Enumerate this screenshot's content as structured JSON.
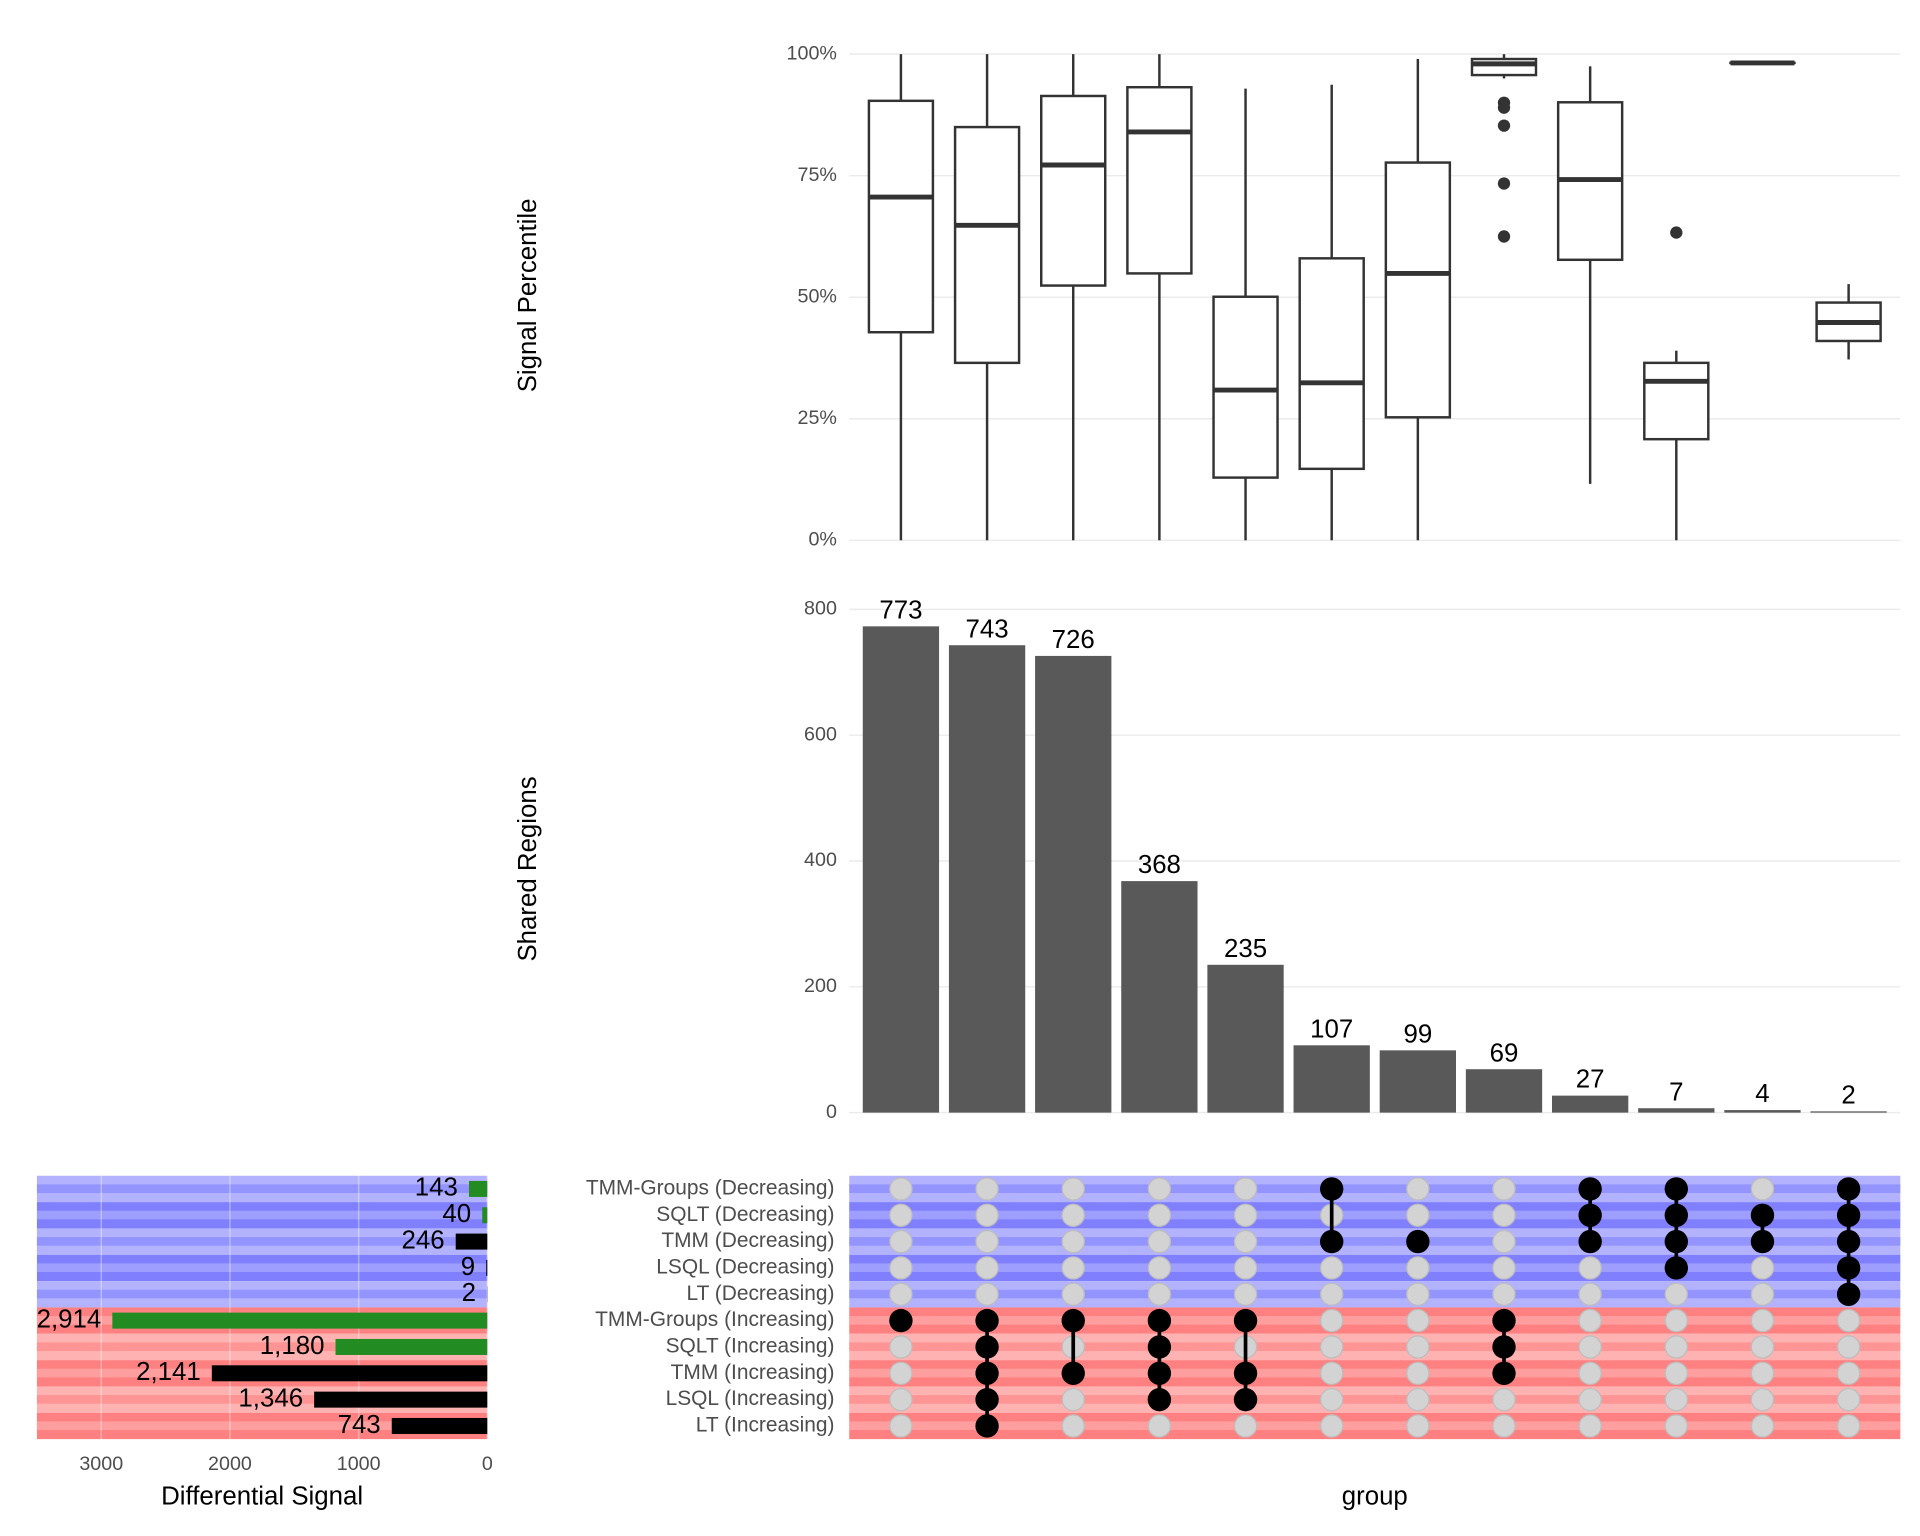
{
  "chart_data": [
    {
      "type": "box",
      "ylabel": "Signal Percentile",
      "categories": [
        null,
        null,
        null,
        null,
        null,
        null,
        null,
        null,
        null,
        null,
        null,
        null
      ],
      "whisker_low": [
        0,
        0,
        0,
        0,
        0,
        0,
        0,
        95,
        11.6,
        0,
        98.2,
        37.2
      ],
      "q1": [
        42.8,
        36.5,
        52.4,
        54.9,
        12.9,
        14.7,
        25.3,
        95.7,
        57.7,
        20.8,
        98.2,
        41
      ],
      "median": [
        70.6,
        64.8,
        77.2,
        84,
        30.9,
        32.4,
        54.9,
        98,
        74.2,
        32.7,
        98.2,
        44.8
      ],
      "q3": [
        90.4,
        85,
        91.4,
        93.2,
        50.1,
        58,
        77.7,
        99,
        90.1,
        36.5,
        98.2,
        48.9
      ],
      "whisker_high": [
        100,
        100,
        100,
        100,
        92.9,
        93.7,
        99,
        100,
        97.5,
        39,
        98.2,
        52.7
      ],
      "outliers": [
        [],
        [],
        [],
        [],
        [],
        [],
        [],
        [
          90,
          89,
          85.3,
          73.4,
          62.5
        ],
        [],
        [
          63.3
        ],
        [],
        []
      ],
      "color": "#333333",
      "ylim": [
        -5,
        100
      ],
      "yticks": [
        {
          "value": 0,
          "label": "0%"
        },
        {
          "value": 25,
          "label": "25%"
        },
        {
          "value": 50,
          "label": "50%"
        },
        {
          "value": 75,
          "label": "75%"
        },
        {
          "value": 100,
          "label": "100%"
        }
      ],
      "grid": true
    },
    {
      "type": "bar",
      "ylabel": "Shared Regions",
      "categories": [
        null,
        null,
        null,
        null,
        null,
        null,
        null,
        null,
        null,
        null,
        null,
        null
      ],
      "values": [
        773,
        743,
        726,
        368,
        235,
        107,
        99,
        69,
        27,
        7,
        4,
        2
      ],
      "color": "#595959",
      "ylim": [
        0,
        810
      ],
      "yticks": [
        0,
        200,
        400,
        600,
        800
      ],
      "grid": true
    },
    {
      "type": "matrix",
      "xlabel": "group",
      "sets": [
        "TMM-Groups (Decreasing)",
        "SQLT (Decreasing)",
        "TMM (Decreasing)",
        "LSQL (Decreasing)",
        "LT (Decreasing)",
        "TMM-Groups (Increasing)",
        "SQLT (Increasing)",
        "TMM (Increasing)",
        "LSQL (Increasing)",
        "LT (Increasing)"
      ],
      "members": [
        [
          5
        ],
        [
          5,
          6,
          7,
          8,
          9
        ],
        [
          5,
          7
        ],
        [
          5,
          6,
          7,
          8
        ],
        [
          5,
          7,
          8
        ],
        [
          0,
          2
        ],
        [
          2
        ],
        [
          5,
          6,
          7
        ],
        [
          0,
          1,
          2
        ],
        [
          0,
          1,
          2,
          3
        ],
        [
          1,
          2
        ],
        [
          0,
          1,
          2,
          3,
          4
        ]
      ],
      "color": "#000000",
      "empty_color": "#d3d3d3"
    },
    {
      "type": "barh",
      "xlabel": "Differential Signal",
      "values": [
        143,
        40,
        246,
        9,
        2,
        2914,
        1180,
        2141,
        1346,
        743
      ],
      "value_labels": [
        "143",
        "40",
        "246",
        "9",
        "2",
        "2,914",
        "1,180",
        "2,141",
        "1,346",
        "743"
      ],
      "colors": [
        "#228b22",
        "#228b22",
        "#000000",
        "#000000",
        "#000000",
        "#228b22",
        "#228b22",
        "#000000",
        "#000000",
        "#000000"
      ],
      "xlim": [
        3500,
        0
      ],
      "xticks": [
        3000,
        2000,
        1000,
        0
      ],
      "grid": true
    }
  ]
}
